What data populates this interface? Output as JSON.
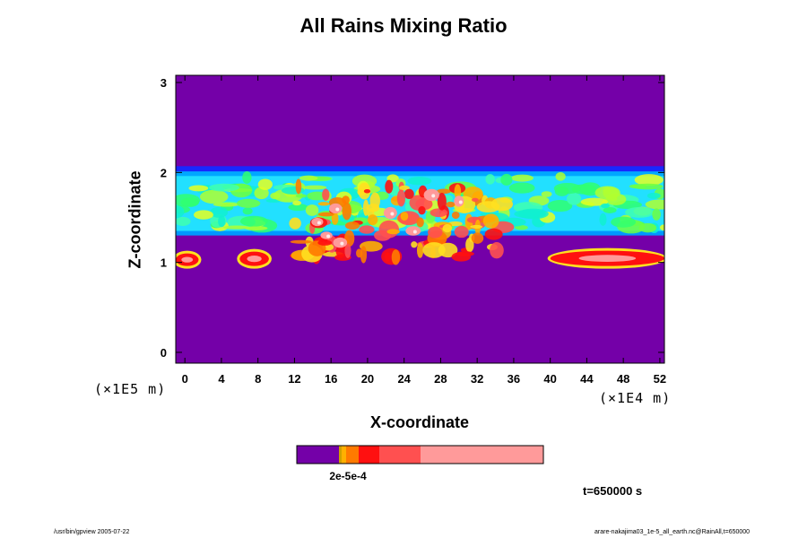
{
  "chart_data": {
    "type": "heatmap",
    "title": "All Rains Mixing Ratio",
    "xlabel": "X-coordinate",
    "ylabel": "Z-coordinate",
    "x_unit": "(×1E4 m)",
    "y_unit": "(×1E5 m)",
    "xlim": [
      -1,
      52.5
    ],
    "ylim": [
      -0.12,
      3.08
    ],
    "x_ticks": [
      "0",
      "4",
      "8",
      "12",
      "16",
      "20",
      "24",
      "28",
      "32",
      "36",
      "40",
      "44",
      "48",
      "52"
    ],
    "y_ticks": [
      "0",
      "1",
      "2",
      "3"
    ],
    "x_tick_values": [
      0,
      4,
      8,
      12,
      16,
      20,
      24,
      28,
      32,
      36,
      40,
      44,
      48,
      52
    ],
    "y_tick_values": [
      0,
      1,
      2,
      3
    ],
    "background_color": "#7400a8",
    "colorbar": {
      "label": "2e-5e-4",
      "colors": [
        "#7400a8",
        "#d0a000",
        "#ffb000",
        "#ff7a00",
        "#ff1010",
        "#ff5050",
        "#ff9a9a"
      ]
    },
    "cloud_layer": {
      "z_base": 1.3,
      "z_top": 2.05,
      "lower_cells": [
        {
          "x_range": [
            -1,
            1.5
          ],
          "z_range": [
            0.96,
            1.1
          ],
          "level": "red"
        },
        {
          "x_range": [
            6,
            9.2
          ],
          "z_range": [
            0.96,
            1.12
          ],
          "level": "red"
        },
        {
          "x_range": [
            40,
            52.5
          ],
          "z_range": [
            0.96,
            1.13
          ],
          "level": "red"
        }
      ],
      "core_region": {
        "x_range": [
          12,
          35
        ],
        "z_range": [
          1.0,
          1.85
        ],
        "peak_level": "pink"
      }
    }
  },
  "labels": {
    "title": "All Rains Mixing Ratio",
    "xlabel": "X-coordinate",
    "ylabel": "Z-coordinate",
    "x_unit": "(×1E4 m)",
    "y_unit": "(×1E5 m)",
    "colorbar_label": "2e-5e-4",
    "timestamp": "t=650000 s",
    "footer_left": "/usr/bin/gpview 2005-07-22",
    "footer_right": "arare-nakajima03_1e-5_all_earth.nc@RainAll,t=650000"
  }
}
